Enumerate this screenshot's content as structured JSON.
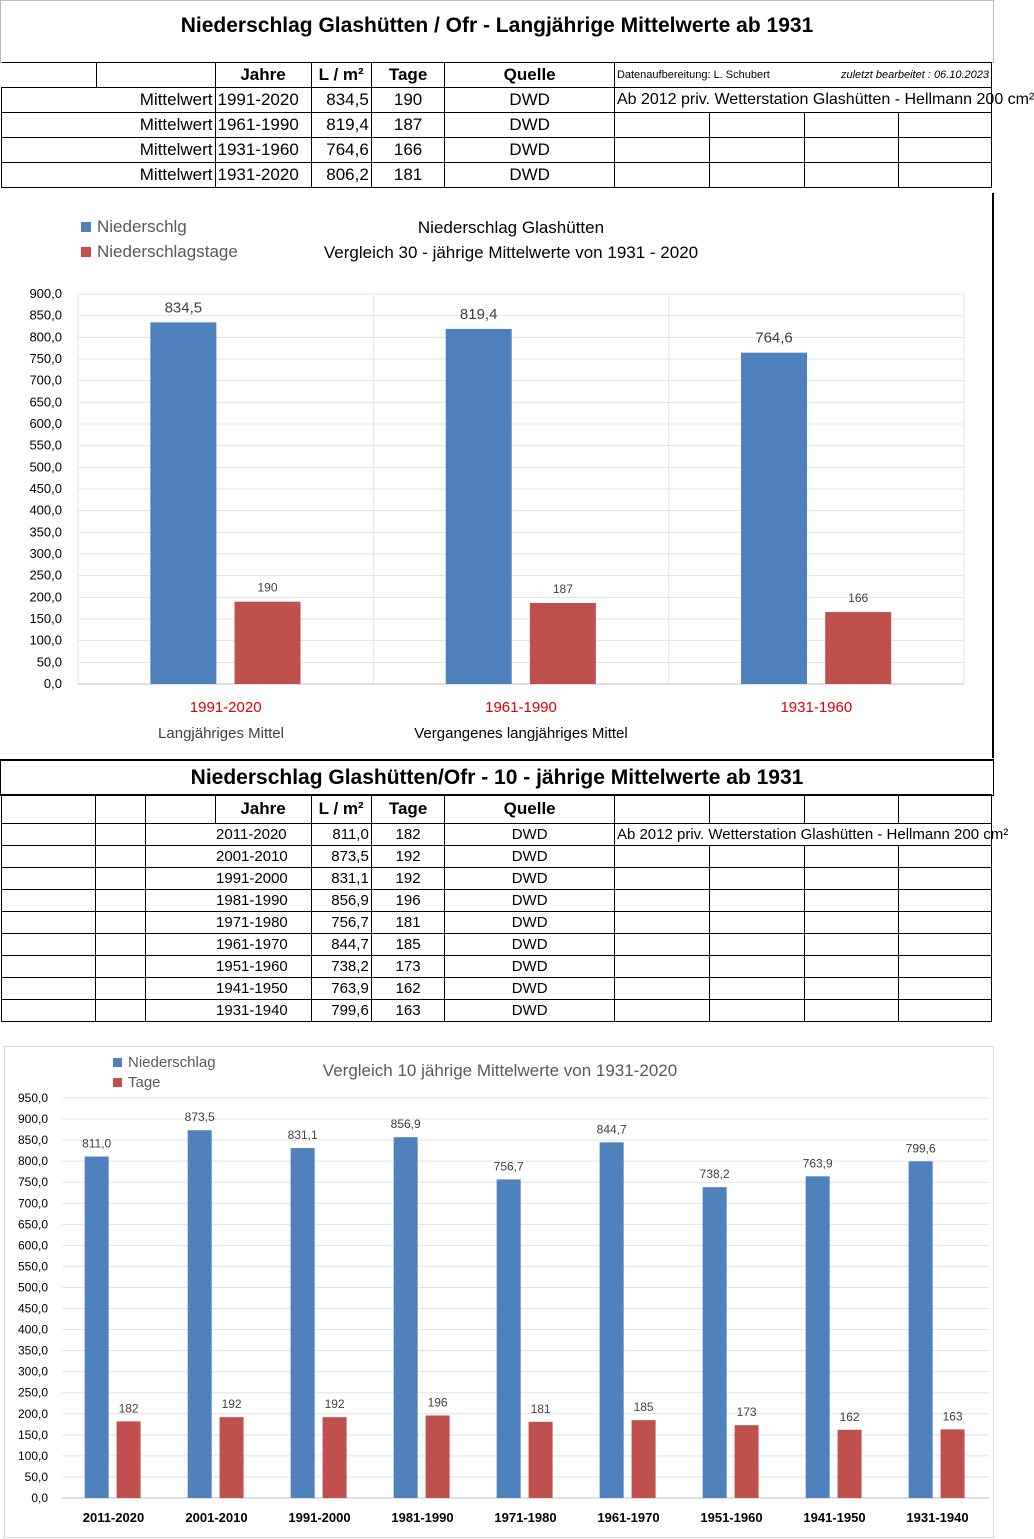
{
  "top": {
    "title": "Niederschlag Glashütten / Ofr - Langjährige Mittelwerte ab 1931",
    "headers": {
      "jahre": "Jahre",
      "l_m2": "L / m²",
      "tage": "Tage",
      "quelle": "Quelle"
    },
    "credit": "Datenaufbereitung: L. Schubert",
    "updated": "zuletzt bearbeitet : 06.10.2023",
    "note": "Ab 2012 priv. Wetterstation Glashütten - Hellmann 200 cm²",
    "rows": [
      {
        "label": "Mittelwert",
        "jahre": "1991-2020",
        "l_m2": "834,5",
        "tage": "190",
        "quelle": "DWD"
      },
      {
        "label": "Mittelwert",
        "jahre": "1961-1990",
        "l_m2": "819,4",
        "tage": "187",
        "quelle": "DWD"
      },
      {
        "label": "Mittelwert",
        "jahre": "1931-1960",
        "l_m2": "764,6",
        "tage": "166",
        "quelle": "DWD"
      },
      {
        "label": "Mittelwert",
        "jahre": "1931-2020",
        "l_m2": "806,2",
        "tage": "181",
        "quelle": "DWD"
      }
    ]
  },
  "mid": {
    "title": "Niederschlag Glashütten/Ofr -  10 - jährige Mittelwerte ab 1931",
    "headers": {
      "jahre": "Jahre",
      "l_m2": "L / m²",
      "tage": "Tage",
      "quelle": "Quelle"
    },
    "note": "Ab 2012 priv. Wetterstation Glashütten - Hellmann 200 cm²",
    "rows": [
      {
        "jahre": "2011-2020",
        "l_m2": "811,0",
        "tage": "182",
        "quelle": "DWD"
      },
      {
        "jahre": "2001-2010",
        "l_m2": "873,5",
        "tage": "192",
        "quelle": "DWD"
      },
      {
        "jahre": "1991-2000",
        "l_m2": "831,1",
        "tage": "192",
        "quelle": "DWD"
      },
      {
        "jahre": "1981-1990",
        "l_m2": "856,9",
        "tage": "196",
        "quelle": "DWD"
      },
      {
        "jahre": "1971-1980",
        "l_m2": "756,7",
        "tage": "181",
        "quelle": "DWD"
      },
      {
        "jahre": "1961-1970",
        "l_m2": "844,7",
        "tage": "185",
        "quelle": "DWD"
      },
      {
        "jahre": "1951-1960",
        "l_m2": "738,2",
        "tage": "173",
        "quelle": "DWD"
      },
      {
        "jahre": "1941-1950",
        "l_m2": "763,9",
        "tage": "162",
        "quelle": "DWD"
      },
      {
        "jahre": "1931-1940",
        "l_m2": "799,6",
        "tage": "163",
        "quelle": "DWD"
      }
    ]
  },
  "chart_data": [
    {
      "type": "bar",
      "title": "Niederschlag Glashütten",
      "subtitle": "Vergleich  30 - jährige Mittelwerte  von 1931 - 2020",
      "categories": [
        "1991-2020",
        "1961-1990",
        "1931-1960"
      ],
      "series": [
        {
          "name": "Niederschlg",
          "values": [
            834.5,
            819.4,
            764.6
          ],
          "labels": [
            "834,5",
            "819,4",
            "764,6"
          ]
        },
        {
          "name": "Niederschlagstage",
          "values": [
            190,
            187,
            166
          ],
          "labels": [
            "190",
            "187",
            "166"
          ]
        }
      ],
      "ylim": [
        0,
        900
      ],
      "ystep": 50,
      "yticks": [
        "0,0",
        "50,0",
        "100,0",
        "150,0",
        "200,0",
        "250,0",
        "300,0",
        "350,0",
        "400,0",
        "450,0",
        "500,0",
        "550,0",
        "600,0",
        "650,0",
        "700,0",
        "750,0",
        "800,0",
        "850,0",
        "900,0"
      ],
      "annotations": [
        "Langjähriges Mittel",
        "Vergangenes langjähriges Mittel"
      ],
      "legend": "top-left",
      "colors": {
        "blue": "#4f81bd",
        "red": "#c0504d",
        "category_label": "#e00000"
      }
    },
    {
      "type": "bar",
      "title": "Vergleich 10 jährige Mittelwerte von 1931-2020",
      "categories": [
        "2011-2020",
        "2001-2010",
        "1991-2000",
        "1981-1990",
        "1971-1980",
        "1961-1970",
        "1951-1960",
        "1941-1950",
        "1931-1940"
      ],
      "series": [
        {
          "name": "Niederschlag",
          "values": [
            811.0,
            873.5,
            831.1,
            856.9,
            756.7,
            844.7,
            738.2,
            763.9,
            799.6
          ],
          "labels": [
            "811,0",
            "873,5",
            "831,1",
            "856,9",
            "756,7",
            "844,7",
            "738,2",
            "763,9",
            "799,6"
          ]
        },
        {
          "name": "Tage",
          "values": [
            182,
            192,
            192,
            196,
            181,
            185,
            173,
            162,
            163
          ],
          "labels": [
            "182",
            "192",
            "192",
            "196",
            "181",
            "185",
            "173",
            "162",
            "163"
          ]
        }
      ],
      "ylim": [
        0,
        950
      ],
      "ystep": 50,
      "yticks": [
        "0,0",
        "50,0",
        "100,0",
        "150,0",
        "200,0",
        "250,0",
        "300,0",
        "350,0",
        "400,0",
        "450,0",
        "500,0",
        "550,0",
        "600,0",
        "650,0",
        "700,0",
        "750,0",
        "800,0",
        "850,0",
        "900,0",
        "950,0"
      ],
      "legend": "top-left",
      "colors": {
        "blue": "#4f81bd",
        "red": "#c0504d"
      }
    }
  ]
}
